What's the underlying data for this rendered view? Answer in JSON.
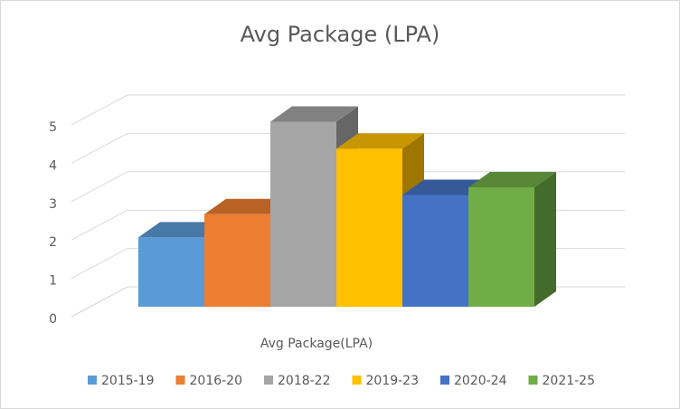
{
  "chart_data": {
    "type": "bar",
    "title": "Avg Package (LPA)",
    "xlabel": "Avg Package(LPA)",
    "ylabel": "",
    "ylim": [
      0,
      5
    ],
    "yticks": [
      "0",
      "1",
      "2",
      "3",
      "4",
      "5"
    ],
    "grid": true,
    "legend_position": "bottom",
    "series": [
      {
        "name": "2015-19",
        "value": 1.8,
        "color": "#5b9bd5"
      },
      {
        "name": "2016-20",
        "value": 2.4,
        "color": "#ed7d31"
      },
      {
        "name": "2018-22",
        "value": 4.8,
        "color": "#a5a5a5"
      },
      {
        "name": "2019-23",
        "value": 4.1,
        "color": "#ffc000"
      },
      {
        "name": "2020-24",
        "value": 2.9,
        "color": "#4472c4"
      },
      {
        "name": "2021-25",
        "value": 3.1,
        "color": "#70ad47"
      }
    ]
  }
}
